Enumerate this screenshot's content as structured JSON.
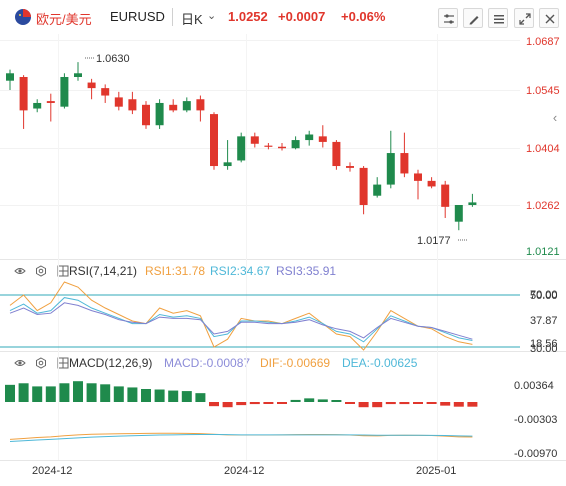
{
  "header": {
    "symbol_cn": "欧元/美元",
    "symbol": "EURUSD",
    "timeframe": "日K",
    "price": "1.0252",
    "change": "+0.0007",
    "change_pct": "+0.06%"
  },
  "main_chart": {
    "high_label": "1.0630",
    "low_label": "1.0177",
    "y_ticks": [
      "1.0687",
      "1.0545",
      "1.0404",
      "1.0262",
      "1.0121"
    ],
    "ylim": [
      1.01,
      1.07
    ],
    "colors": {
      "up": "#1f8a4c",
      "down": "#e0362c",
      "price_tick": "#e0362c"
    }
  },
  "rsi": {
    "label": "RSI(7,14,21)",
    "rsi1": "RSI1:31.78",
    "rsi2": "RSI2:34.67",
    "rsi3": "RSI3:35.91",
    "ticks": [
      "70.00",
      "50.00",
      "37.87",
      "18.56",
      "30.00"
    ],
    "colors": {
      "rsi1": "#f0a040",
      "rsi2": "#4fb8d8",
      "rsi3": "#8080d0",
      "band": "#30a8b8"
    }
  },
  "macd": {
    "label": "MACD(12,26,9)",
    "macd": "MACD:-0.00087",
    "dif": "DIF:-0.00669",
    "dea": "DEA:-0.00625",
    "ticks": [
      "0.00364",
      "-0.00303",
      "-0.00970"
    ],
    "colors": {
      "macd": "#8c8cd8",
      "dif": "#f0a040",
      "dea": "#4fb8d8"
    }
  },
  "x_axis": {
    "labels": [
      "2024-12",
      "2024-12",
      "2025-01"
    ]
  },
  "chart_data": {
    "type": "candlestick",
    "ylim": [
      1.01,
      1.07
    ],
    "candles": [
      {
        "o": 1.058,
        "h": 1.061,
        "l": 1.0555,
        "c": 1.06
      },
      {
        "o": 1.059,
        "h": 1.0595,
        "l": 1.045,
        "c": 1.05
      },
      {
        "o": 1.0505,
        "h": 1.053,
        "l": 1.0495,
        "c": 1.052
      },
      {
        "o": 1.0525,
        "h": 1.0545,
        "l": 1.047,
        "c": 1.052
      },
      {
        "o": 1.051,
        "h": 1.06,
        "l": 1.0505,
        "c": 1.059
      },
      {
        "o": 1.059,
        "h": 1.063,
        "l": 1.058,
        "c": 1.06
      },
      {
        "o": 1.0575,
        "h": 1.0585,
        "l": 1.053,
        "c": 1.056
      },
      {
        "o": 1.056,
        "h": 1.057,
        "l": 1.052,
        "c": 1.054
      },
      {
        "o": 1.0535,
        "h": 1.055,
        "l": 1.05,
        "c": 1.051
      },
      {
        "o": 1.053,
        "h": 1.055,
        "l": 1.049,
        "c": 1.05
      },
      {
        "o": 1.0515,
        "h": 1.0525,
        "l": 1.045,
        "c": 1.046
      },
      {
        "o": 1.046,
        "h": 1.053,
        "l": 1.045,
        "c": 1.052
      },
      {
        "o": 1.0515,
        "h": 1.053,
        "l": 1.0495,
        "c": 1.05
      },
      {
        "o": 1.05,
        "h": 1.0535,
        "l": 1.0495,
        "c": 1.0525
      },
      {
        "o": 1.053,
        "h": 1.054,
        "l": 1.047,
        "c": 1.05
      },
      {
        "o": 1.049,
        "h": 1.0495,
        "l": 1.034,
        "c": 1.035
      },
      {
        "o": 1.035,
        "h": 1.042,
        "l": 1.034,
        "c": 1.036
      },
      {
        "o": 1.0365,
        "h": 1.044,
        "l": 1.036,
        "c": 1.043
      },
      {
        "o": 1.043,
        "h": 1.044,
        "l": 1.04,
        "c": 1.041
      },
      {
        "o": 1.0405,
        "h": 1.0412,
        "l": 1.0395,
        "c": 1.0402
      },
      {
        "o": 1.0402,
        "h": 1.0412,
        "l": 1.0392,
        "c": 1.0398
      },
      {
        "o": 1.0398,
        "h": 1.043,
        "l": 1.0395,
        "c": 1.042
      },
      {
        "o": 1.042,
        "h": 1.0445,
        "l": 1.0405,
        "c": 1.0435
      },
      {
        "o": 1.043,
        "h": 1.046,
        "l": 1.04,
        "c": 1.0415
      },
      {
        "o": 1.0415,
        "h": 1.042,
        "l": 1.034,
        "c": 1.035
      },
      {
        "o": 1.035,
        "h": 1.036,
        "l": 1.0335,
        "c": 1.0345
      },
      {
        "o": 1.0345,
        "h": 1.035,
        "l": 1.022,
        "c": 1.0245
      },
      {
        "o": 1.027,
        "h": 1.032,
        "l": 1.0265,
        "c": 1.03
      },
      {
        "o": 1.03,
        "h": 1.0445,
        "l": 1.029,
        "c": 1.0385
      },
      {
        "o": 1.0385,
        "h": 1.044,
        "l": 1.032,
        "c": 1.033
      },
      {
        "o": 1.033,
        "h": 1.034,
        "l": 1.026,
        "c": 1.031
      },
      {
        "o": 1.031,
        "h": 1.032,
        "l": 1.029,
        "c": 1.0295
      },
      {
        "o": 1.03,
        "h": 1.031,
        "l": 1.021,
        "c": 1.024
      },
      {
        "o": 1.02,
        "h": 1.0245,
        "l": 1.0177,
        "c": 1.0245
      },
      {
        "o": 1.0245,
        "h": 1.0275,
        "l": 1.024,
        "c": 1.0252
      }
    ],
    "rsi1": [
      62,
      70,
      58,
      64,
      80,
      76,
      66,
      60,
      55,
      50,
      48,
      60,
      56,
      58,
      54,
      30,
      36,
      52,
      50,
      50,
      48,
      52,
      56,
      48,
      40,
      38,
      25,
      42,
      58,
      52,
      46,
      44,
      38,
      34,
      32
    ],
    "rsi2": [
      58,
      63,
      56,
      58,
      68,
      66,
      60,
      56,
      52,
      48,
      48,
      55,
      53,
      54,
      52,
      38,
      40,
      50,
      50,
      49,
      48,
      50,
      53,
      48,
      42,
      40,
      34,
      44,
      54,
      50,
      46,
      45,
      41,
      37,
      35
    ],
    "rsi3": [
      56,
      60,
      55,
      56,
      64,
      62,
      58,
      55,
      51,
      49,
      48,
      53,
      52,
      52,
      51,
      40,
      42,
      49,
      49,
      48,
      48,
      49,
      51,
      47,
      44,
      42,
      37,
      45,
      52,
      49,
      46,
      45,
      42,
      39,
      36
    ],
    "macd_hist": [
      0.0033,
      0.0036,
      0.003,
      0.003,
      0.0036,
      0.004,
      0.0036,
      0.0034,
      0.003,
      0.0028,
      0.0025,
      0.0024,
      0.0022,
      0.0021,
      0.0017,
      -0.0008,
      -0.001,
      -0.0006,
      -0.0004,
      -0.0002,
      -0.0001,
      0.0004,
      0.0007,
      0.0005,
      0.0002,
      -0.0002,
      -0.001,
      -0.001,
      -0.0004,
      -0.0004,
      -0.0003,
      -0.0002,
      -0.0007,
      -0.0009,
      -0.0009
    ],
    "dif": [
      -0.008,
      -0.0075,
      -0.007,
      -0.0066,
      -0.006,
      -0.0055,
      -0.0052,
      -0.005,
      -0.0049,
      -0.0048,
      -0.0047,
      -0.0046,
      -0.0046,
      -0.0047,
      -0.0048,
      -0.0052,
      -0.0055,
      -0.0056,
      -0.0056,
      -0.0056,
      -0.0055,
      -0.0054,
      -0.0053,
      -0.0053,
      -0.0054,
      -0.0056,
      -0.006,
      -0.0061,
      -0.0058,
      -0.0057,
      -0.0058,
      -0.0059,
      -0.0062,
      -0.0066,
      -0.0067
    ],
    "dea": [
      -0.0092,
      -0.0088,
      -0.0084,
      -0.008,
      -0.0076,
      -0.0072,
      -0.0068,
      -0.0065,
      -0.0062,
      -0.006,
      -0.0058,
      -0.0056,
      -0.0055,
      -0.0054,
      -0.0053,
      -0.0053,
      -0.0054,
      -0.0055,
      -0.0055,
      -0.0055,
      -0.0055,
      -0.0055,
      -0.0055,
      -0.0055,
      -0.0055,
      -0.0055,
      -0.0056,
      -0.0057,
      -0.0057,
      -0.0057,
      -0.0057,
      -0.0058,
      -0.0059,
      -0.0061,
      -0.0062
    ]
  }
}
